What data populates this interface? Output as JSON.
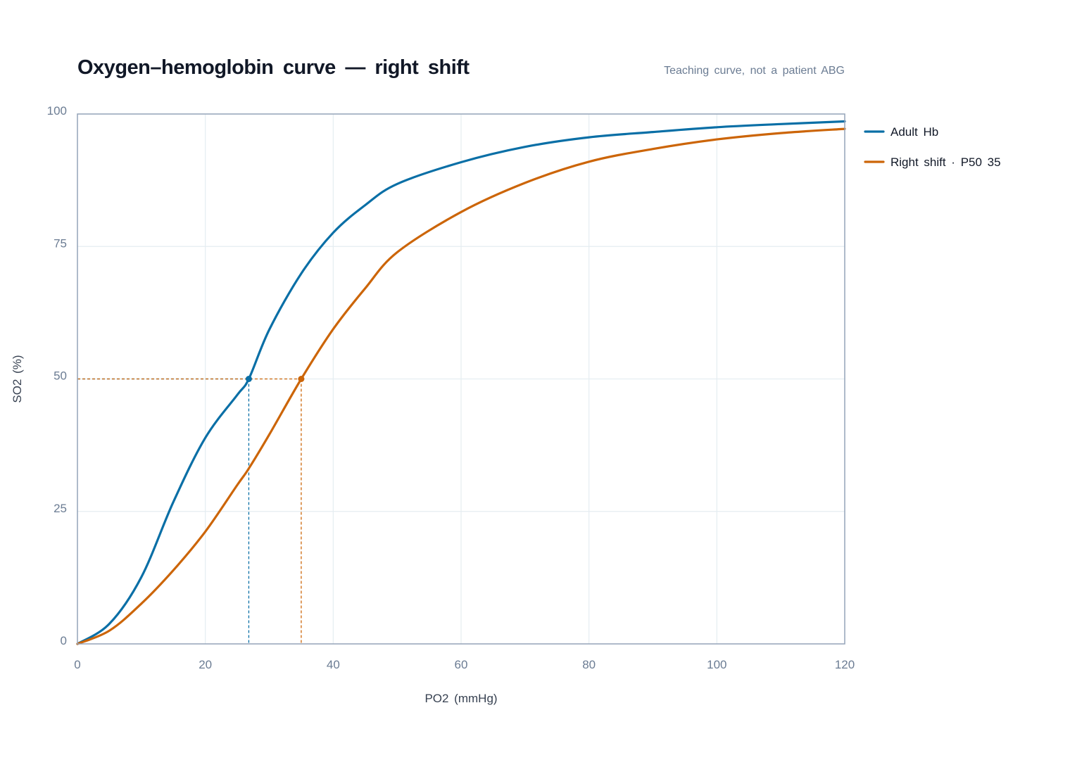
{
  "chart_data": {
    "type": "line",
    "title": "Oxygen–hemoglobin curve — right shift",
    "subtitle": "Teaching curve, not a patient ABG",
    "xlabel": "PO2 (mmHg)",
    "ylabel": "SO2 (%)",
    "xlim": [
      0,
      120
    ],
    "ylim": [
      0,
      100
    ],
    "xticks": [
      "0",
      "20",
      "40",
      "60",
      "80",
      "100",
      "120"
    ],
    "yticks": [
      "0",
      "25",
      "50",
      "75",
      "100"
    ],
    "grid": true,
    "legend_position": "right",
    "x": [
      0,
      5,
      10,
      15,
      20,
      25,
      26.8,
      30,
      35,
      40,
      45,
      50,
      60,
      70,
      80,
      90,
      100,
      110,
      120
    ],
    "series": [
      {
        "name": "Adult Hb",
        "color": "#0a6fa6",
        "p50": 26.8,
        "values": [
          0,
          3.8,
          12.6,
          26.8,
          38.9,
          47.0,
          50,
          59.3,
          69.9,
          77.6,
          82.8,
          86.8,
          90.9,
          93.8,
          95.6,
          96.6,
          97.5,
          98.1,
          98.6
        ]
      },
      {
        "name": "Right shift · P50 35",
        "color": "#cc6508",
        "p50": 35,
        "values": [
          0,
          2.5,
          7.6,
          13.9,
          21.2,
          30.0,
          33.1,
          39.5,
          50,
          59.4,
          67.1,
          73.9,
          81.5,
          87.0,
          91.0,
          93.4,
          95.2,
          96.4,
          97.2
        ]
      }
    ],
    "reference_level": 50
  }
}
